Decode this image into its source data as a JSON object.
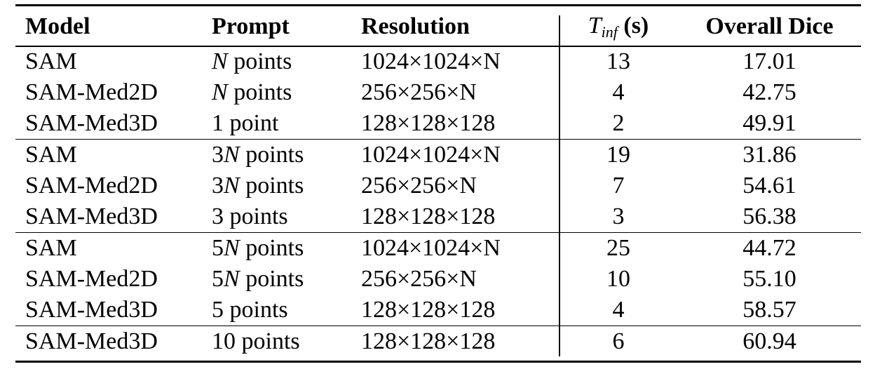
{
  "header": {
    "model": "Model",
    "prompt": "Prompt",
    "resolution": "Resolution",
    "tinf_var": "T",
    "tinf_sub": "inf",
    "tinf_unit": "(s)",
    "dice": "Overall Dice"
  },
  "rows": [
    {
      "model": "SAM",
      "prompt": "N points",
      "resolution": "1024×1024×N",
      "tinf": "13",
      "dice": "17.01"
    },
    {
      "model": "SAM-Med2D",
      "prompt": "N points",
      "resolution": "256×256×N",
      "tinf": "4",
      "dice": "42.75"
    },
    {
      "model": "SAM-Med3D",
      "prompt": "1 point",
      "resolution": "128×128×128",
      "tinf": "2",
      "dice": "49.91"
    },
    {
      "model": "SAM",
      "prompt": "3N points",
      "resolution": "1024×1024×N",
      "tinf": "19",
      "dice": "31.86"
    },
    {
      "model": "SAM-Med2D",
      "prompt": "3N points",
      "resolution": "256×256×N",
      "tinf": "7",
      "dice": "54.61"
    },
    {
      "model": "SAM-Med3D",
      "prompt": "3 points",
      "resolution": "128×128×128",
      "tinf": "3",
      "dice": "56.38"
    },
    {
      "model": "SAM",
      "prompt": "5N points",
      "resolution": "1024×1024×N",
      "tinf": "25",
      "dice": "44.72"
    },
    {
      "model": "SAM-Med2D",
      "prompt": "5N points",
      "resolution": "256×256×N",
      "tinf": "10",
      "dice": "55.10"
    },
    {
      "model": "SAM-Med3D",
      "prompt": "5 points",
      "resolution": "128×128×128",
      "tinf": "4",
      "dice": "58.57"
    },
    {
      "model": "SAM-Med3D",
      "prompt": "10 points",
      "resolution": "128×128×128",
      "tinf": "6",
      "dice": "60.94"
    }
  ],
  "group_starts": [
    3,
    6,
    9
  ]
}
